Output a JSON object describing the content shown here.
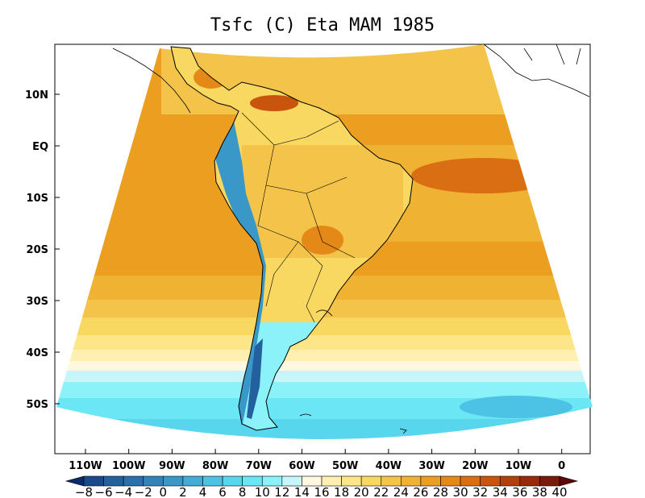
{
  "title": "Tsfc (C) Eta MAM 1985",
  "lat_labels": [
    "10N",
    "EQ",
    "10S",
    "20S",
    "30S",
    "40S",
    "50S"
  ],
  "lon_labels": [
    "110W",
    "100W",
    "90W",
    "80W",
    "70W",
    "60W",
    "50W",
    "40W",
    "30W",
    "20W",
    "10W",
    "0"
  ],
  "colorbar": {
    "labels": [
      "−8",
      "−6",
      "−4",
      "−2",
      "0",
      "2",
      "4",
      "6",
      "8",
      "10",
      "12",
      "14",
      "16",
      "18",
      "20",
      "22",
      "24",
      "26",
      "28",
      "30",
      "32",
      "34",
      "36",
      "38",
      "40"
    ],
    "colors": [
      "#0b2a6b",
      "#1a4a8c",
      "#22609e",
      "#2a70ad",
      "#3282b8",
      "#3a98c8",
      "#42acd6",
      "#4cc2e4",
      "#58d6ee",
      "#6ae6f4",
      "#8af2f8",
      "#c6f6fa",
      "#fff7e0",
      "#fff0b2",
      "#fde68a",
      "#f8d860",
      "#f4c44a",
      "#f0b232",
      "#eb9e20",
      "#e48818",
      "#da6e12",
      "#c8540e",
      "#b0400c",
      "#962a0a",
      "#7a1a0a",
      "#5c0808"
    ]
  }
}
